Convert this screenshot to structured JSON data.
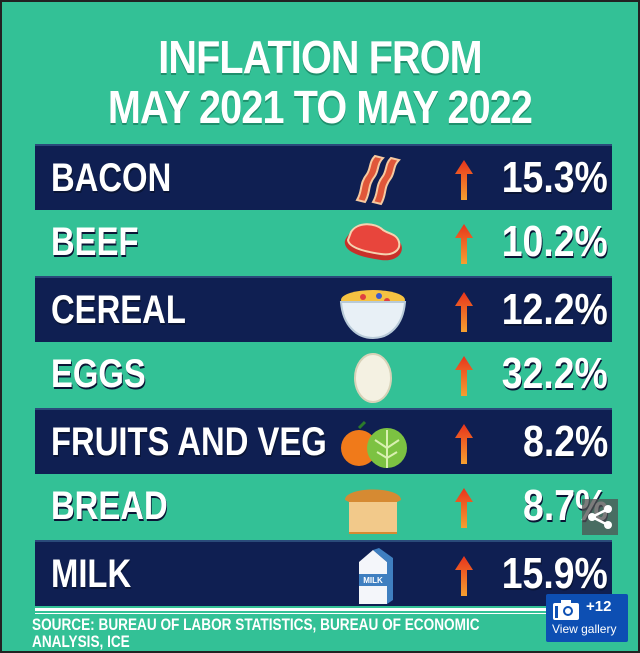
{
  "title_lines": [
    "INFLATION FROM",
    "MAY 2021 TO MAY 2022"
  ],
  "colors": {
    "background": "#33c196",
    "row_dark": "#0f1f52",
    "arrow": "#f05a28",
    "text": "#ffffff"
  },
  "chart_data": {
    "type": "table",
    "title": "INFLATION FROM MAY 2021 TO MAY 2022",
    "categories": [
      "BACON",
      "BEEF",
      "CEREAL",
      "EGGS",
      "FRUITS AND VEG",
      "BREAD",
      "MILK"
    ],
    "values": [
      15.3,
      10.2,
      12.2,
      32.2,
      8.2,
      8.7,
      15.9
    ],
    "value_labels": [
      "15.3%",
      "10.2%",
      "12.2%",
      "32.2%",
      "8.2%",
      "8.7%",
      "15.9%"
    ],
    "icons": [
      "bacon-icon",
      "steak-icon",
      "cereal-bowl-icon",
      "egg-icon",
      "orange-lettuce-icon",
      "bread-icon",
      "milk-carton-icon"
    ],
    "trend": "up-arrow"
  },
  "milk_carton_text": "MILK",
  "source": "SOURCE: BUREAU OF LABOR STATISTICS, BUREAU OF ECONOMIC ANALYSIS, ICE",
  "gallery": {
    "count": "+12",
    "label": "View gallery"
  }
}
